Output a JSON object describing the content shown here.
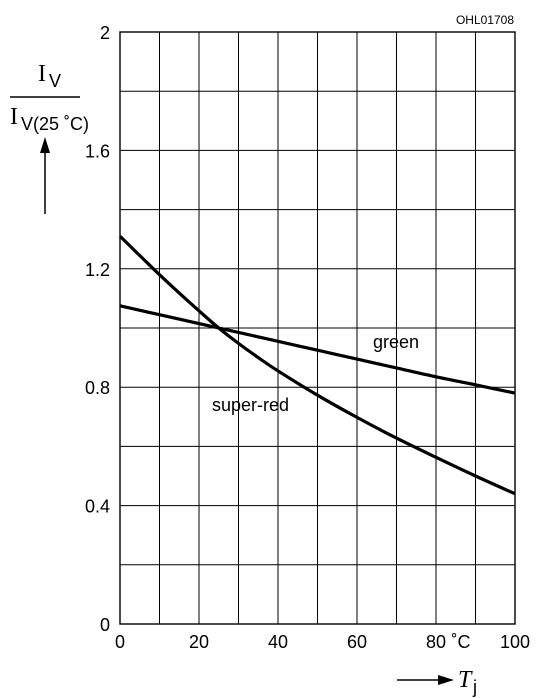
{
  "chart_data": {
    "type": "line",
    "figure_code": "OHL01708",
    "ylabel": {
      "numerator": "I",
      "numerator_sub": "V",
      "denominator": "I",
      "denominator_sub": "V(25 ˚C)"
    },
    "xlabel": {
      "symbol": "T",
      "sub": "j"
    },
    "x_unit": "˚C",
    "xlim": [
      0,
      100
    ],
    "ylim": [
      0,
      2
    ],
    "x_ticks": [
      0,
      20,
      40,
      60,
      80,
      100
    ],
    "x_tick_labels": [
      "0",
      "20",
      "40",
      "60",
      "80",
      "100"
    ],
    "y_ticks": [
      0,
      0.4,
      0.8,
      1.2,
      1.6,
      2
    ],
    "y_tick_labels": [
      "0",
      "0.4",
      "0.8",
      "1.2",
      "1.6",
      "2"
    ],
    "grid": true,
    "grid_x_step": 10,
    "grid_y_step": 0.2,
    "series": [
      {
        "name": "green",
        "x": [
          0,
          10,
          20,
          25,
          30,
          40,
          50,
          60,
          70,
          80,
          90,
          100
        ],
        "y": [
          1.075,
          1.045,
          1.015,
          1.0,
          0.985,
          0.955,
          0.925,
          0.895,
          0.865,
          0.835,
          0.808,
          0.78
        ]
      },
      {
        "name": "super-red",
        "x": [
          0,
          5,
          10,
          15,
          20,
          25,
          30,
          35,
          40,
          50,
          60,
          70,
          80,
          90,
          100
        ],
        "y": [
          1.31,
          1.245,
          1.18,
          1.118,
          1.058,
          1.0,
          0.948,
          0.9,
          0.855,
          0.773,
          0.698,
          0.628,
          0.563,
          0.5,
          0.44
        ]
      }
    ]
  }
}
